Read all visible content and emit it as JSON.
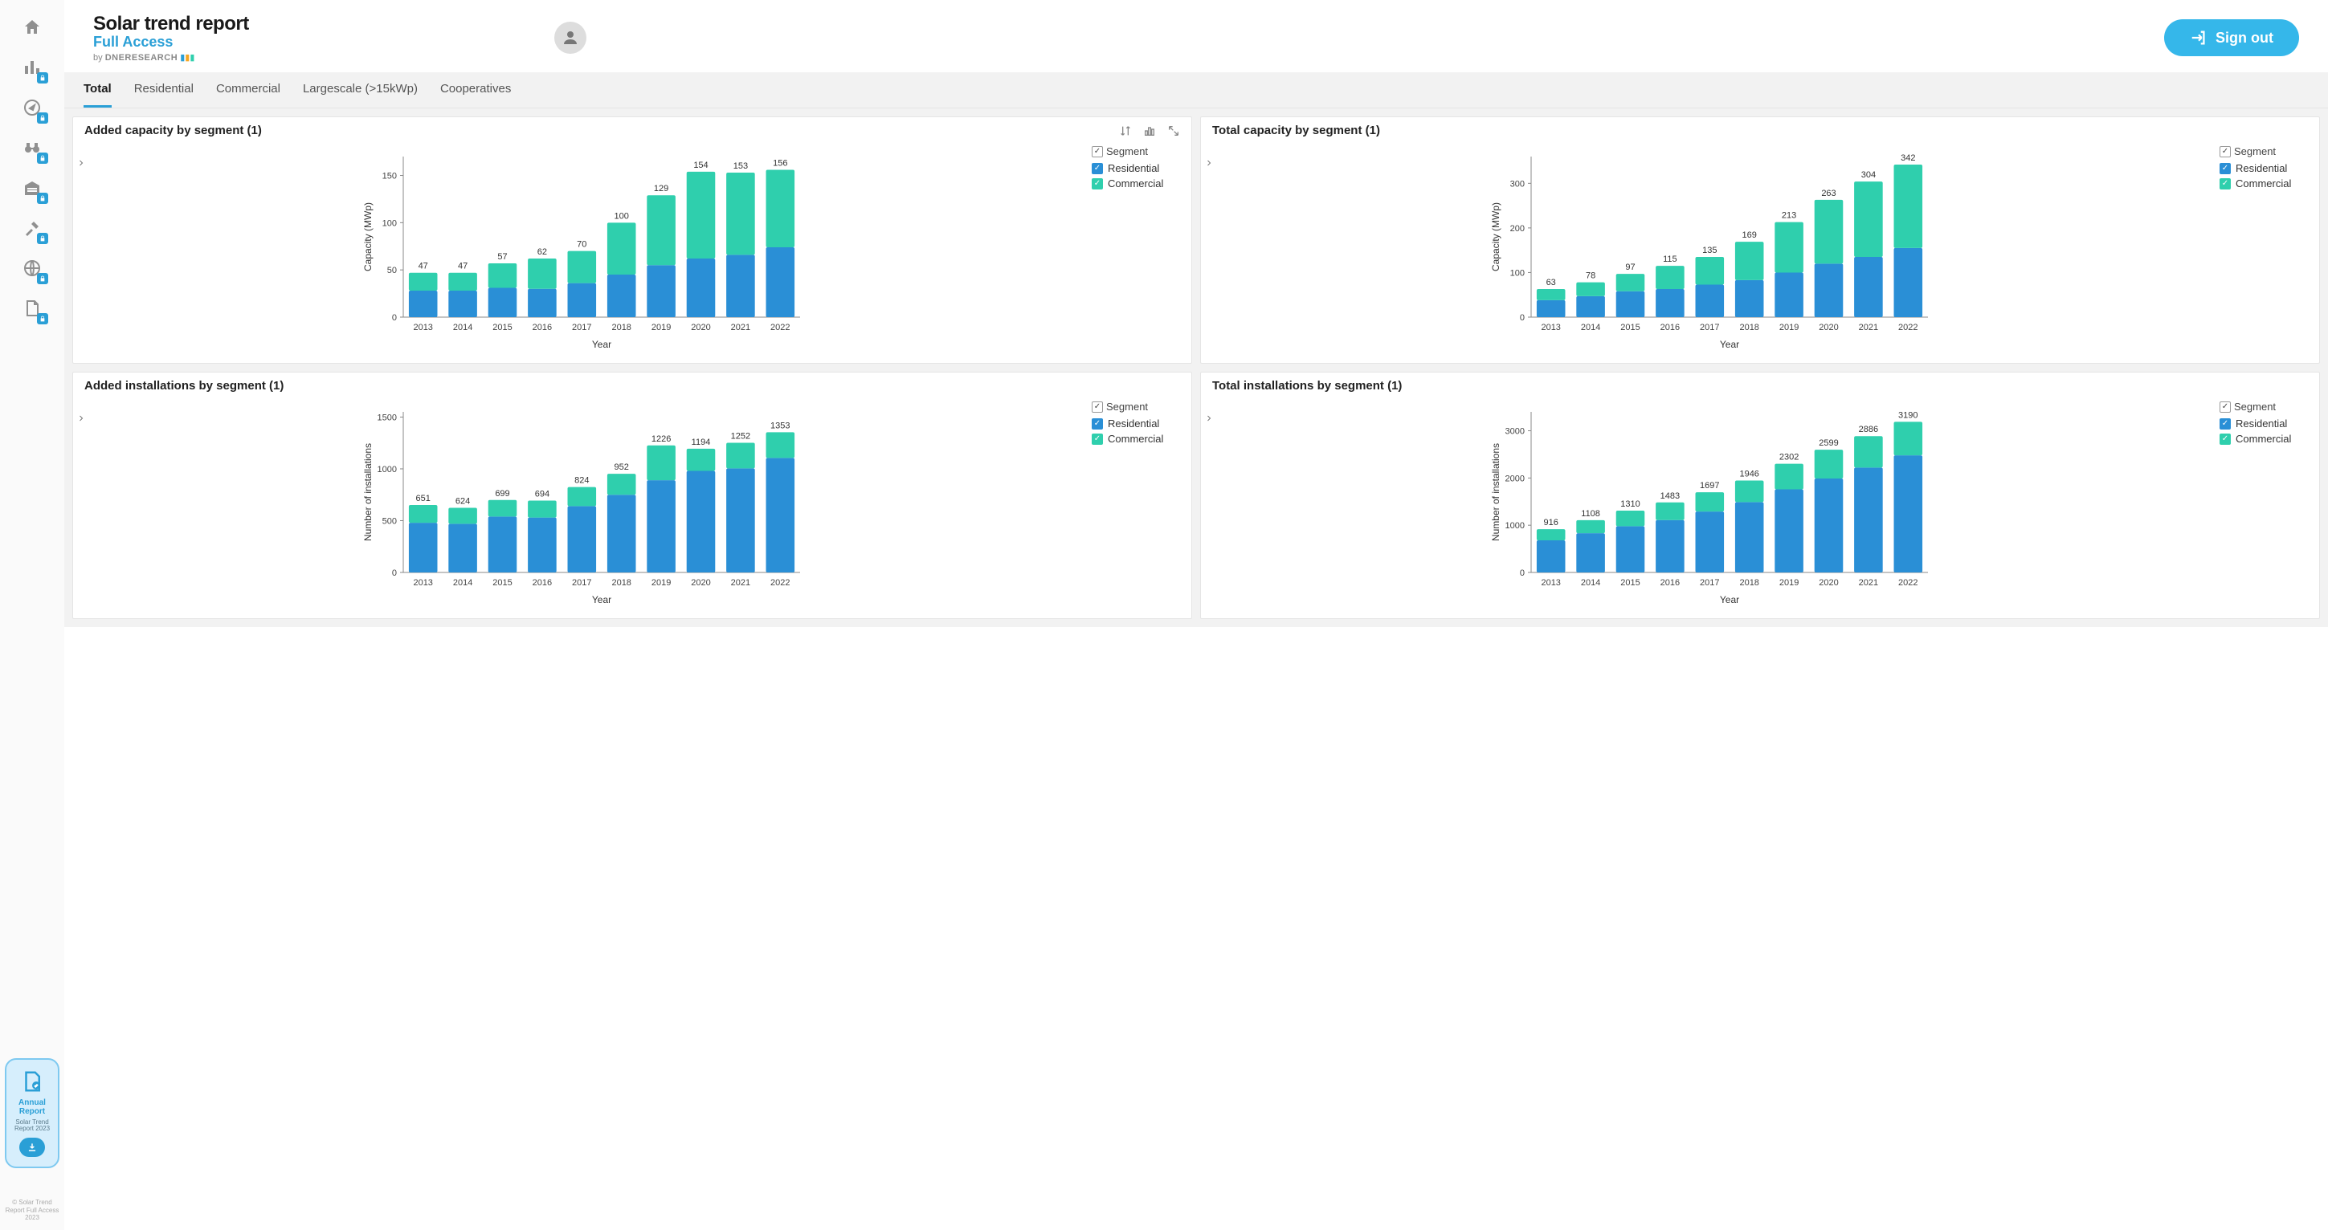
{
  "brand": {
    "title": "Solar trend report",
    "subtitle": "Full Access",
    "by_prefix": "by",
    "by_name": "DNERESEARCH"
  },
  "signout_label": "Sign out",
  "tabs": [
    "Total",
    "Residential",
    "Commercial",
    "Largescale (>15kWp)",
    "Cooperatives"
  ],
  "active_tab": 0,
  "legend": {
    "header": "Segment",
    "items": [
      {
        "label": "Residential",
        "color": "#2a8fd6"
      },
      {
        "label": "Commercial",
        "color": "#2fcfad"
      }
    ]
  },
  "annual_report": {
    "title": "Annual Report",
    "subtitle": "Solar Trend Report 2023"
  },
  "copyright": "© Solar Trend Report Full Access 2023",
  "colors": {
    "residential": "#2a8fd6",
    "commercial": "#2fcfad",
    "axis": "#999999",
    "bg": "#ffffff"
  },
  "charts": [
    {
      "id": "added_capacity",
      "title": "Added capacity by segment (1)",
      "show_tools": true,
      "type": "stacked-bar",
      "x_label": "Year",
      "y_label": "Capacity (MWp)",
      "categories": [
        "2013",
        "2014",
        "2015",
        "2016",
        "2017",
        "2018",
        "2019",
        "2020",
        "2021",
        "2022"
      ],
      "totals": [
        47,
        47,
        57,
        62,
        70,
        100,
        129,
        154,
        153,
        156
      ],
      "residential": [
        28,
        28,
        31,
        30,
        36,
        45,
        55,
        62,
        66,
        74
      ],
      "commercial": [
        19,
        19,
        26,
        32,
        34,
        55,
        74,
        92,
        87,
        82
      ],
      "y_ticks": [
        0,
        50,
        100,
        150
      ],
      "y_max": 170
    },
    {
      "id": "total_capacity",
      "title": "Total capacity by segment (1)",
      "show_tools": false,
      "type": "stacked-bar",
      "x_label": "Year",
      "y_label": "Capacity (MWp)",
      "categories": [
        "2013",
        "2014",
        "2015",
        "2016",
        "2017",
        "2018",
        "2019",
        "2020",
        "2021",
        "2022"
      ],
      "totals": [
        63,
        78,
        97,
        115,
        135,
        169,
        213,
        263,
        304,
        342
      ],
      "residential": [
        38,
        47,
        58,
        63,
        73,
        83,
        100,
        120,
        135,
        155
      ],
      "commercial": [
        25,
        31,
        39,
        52,
        62,
        86,
        113,
        143,
        169,
        187
      ],
      "y_ticks": [
        0,
        100,
        200,
        300
      ],
      "y_max": 360
    },
    {
      "id": "added_installations",
      "title": "Added installations by segment (1)",
      "show_tools": false,
      "type": "stacked-bar",
      "x_label": "Year",
      "y_label": "Number of installations",
      "categories": [
        "2013",
        "2014",
        "2015",
        "2016",
        "2017",
        "2018",
        "2019",
        "2020",
        "2021",
        "2022"
      ],
      "totals": [
        651,
        624,
        699,
        694,
        824,
        952,
        1226,
        1194,
        1252,
        1353
      ],
      "residential": [
        480,
        470,
        540,
        530,
        640,
        750,
        890,
        980,
        1005,
        1105
      ],
      "commercial": [
        171,
        154,
        159,
        164,
        184,
        202,
        336,
        214,
        247,
        248
      ],
      "y_ticks": [
        0,
        500,
        1000,
        1500
      ],
      "y_max": 1550
    },
    {
      "id": "total_installations",
      "title": "Total installations by segment (1)",
      "show_tools": false,
      "type": "stacked-bar",
      "x_label": "Year",
      "y_label": "Number of installations",
      "categories": [
        "2013",
        "2014",
        "2015",
        "2016",
        "2017",
        "2018",
        "2019",
        "2020",
        "2021",
        "2022"
      ],
      "totals": [
        916,
        1108,
        1310,
        1483,
        1697,
        1946,
        2302,
        2599,
        2886,
        3190
      ],
      "residential": [
        680,
        830,
        980,
        1110,
        1290,
        1490,
        1760,
        1990,
        2220,
        2480
      ],
      "commercial": [
        236,
        278,
        330,
        373,
        407,
        456,
        542,
        609,
        666,
        710
      ],
      "y_ticks": [
        0,
        1000,
        2000,
        3000
      ],
      "y_max": 3400
    }
  ]
}
